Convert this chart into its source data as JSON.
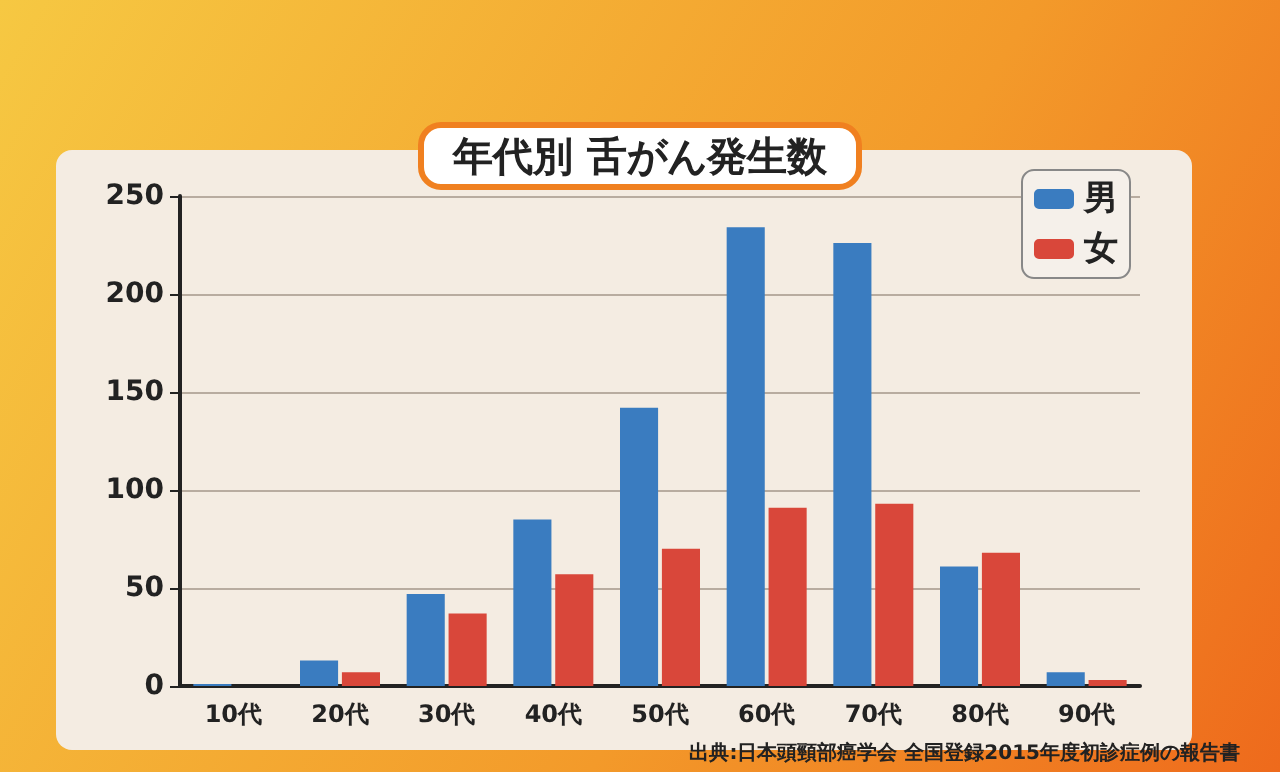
{
  "chart_data": {
    "type": "bar",
    "title": "年代別 舌がん発生数",
    "categories": [
      "10代",
      "20代",
      "30代",
      "40代",
      "50代",
      "60代",
      "70代",
      "80代",
      "90代"
    ],
    "series": [
      {
        "name": "男",
        "color": "#3a7cc0",
        "values": [
          1,
          13,
          47,
          85,
          142,
          234,
          226,
          61,
          7
        ]
      },
      {
        "name": "女",
        "color": "#d9473a",
        "values": [
          0,
          7,
          37,
          57,
          70,
          91,
          93,
          68,
          3
        ]
      }
    ],
    "ylim": [
      0,
      250
    ],
    "yticks": [
      0,
      50,
      100,
      150,
      200,
      250
    ],
    "grid": "y",
    "legend": "top right",
    "annotations": [
      "出典:日本頭頸部癌学会 全国登録2015年度初診症例の報告書"
    ]
  }
}
